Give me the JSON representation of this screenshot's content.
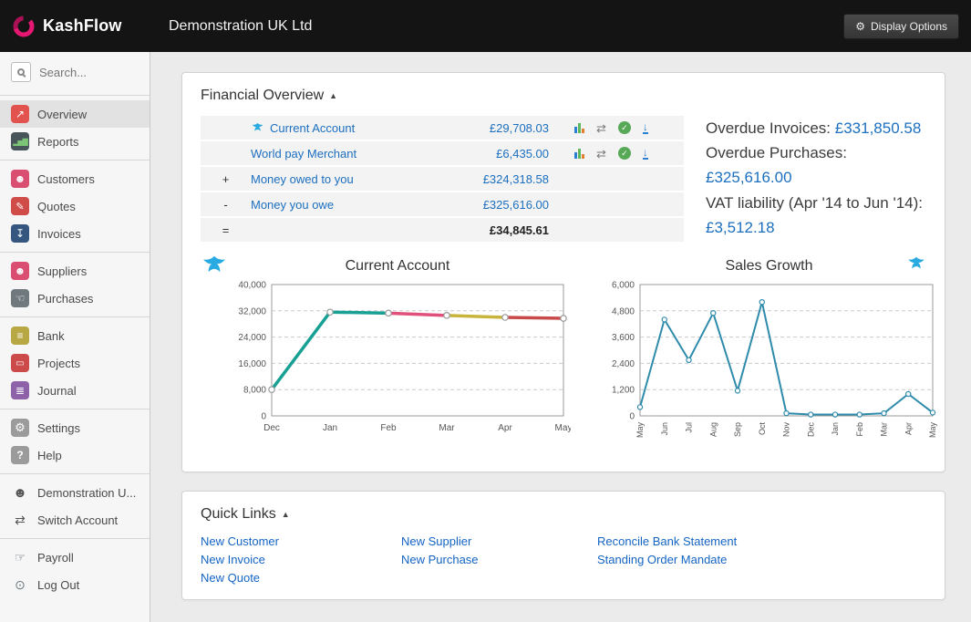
{
  "topbar": {
    "brand": "KashFlow",
    "company": "Demonstration UK Ltd",
    "display_options_label": "Display Options"
  },
  "sidebar": {
    "search_placeholder": "Search...",
    "items": [
      {
        "label": "Overview",
        "icon": "line-chart-icon",
        "active": true
      },
      {
        "label": "Reports",
        "icon": "bar-chart-icon"
      },
      {
        "label": "Customers",
        "icon": "people-icon"
      },
      {
        "label": "Quotes",
        "icon": "quote-doc-icon"
      },
      {
        "label": "Invoices",
        "icon": "invoice-tray-icon"
      },
      {
        "label": "Suppliers",
        "icon": "people-icon"
      },
      {
        "label": "Purchases",
        "icon": "hand-icon"
      },
      {
        "label": "Bank",
        "icon": "banknote-icon"
      },
      {
        "label": "Projects",
        "icon": "folder-icon"
      },
      {
        "label": "Journal",
        "icon": "journal-book-icon"
      },
      {
        "label": "Settings",
        "icon": "gear-icon"
      },
      {
        "label": "Help",
        "icon": "question-icon"
      },
      {
        "label": "Demonstration U...",
        "icon": "user-icon"
      },
      {
        "label": "Switch Account",
        "icon": "switch-arrows-icon"
      },
      {
        "label": "Payroll",
        "icon": "payroll-hand-icon"
      },
      {
        "label": "Log Out",
        "icon": "power-icon"
      }
    ]
  },
  "financial_overview": {
    "title": "Financial Overview",
    "collapse_icon": "▲",
    "rows": [
      {
        "prefix": "",
        "name": "Current Account",
        "amount": "£29,708.03",
        "has_bank_logo": true,
        "actions": [
          "mini-chart-icon",
          "transfer-icon",
          "reconcile-check-icon",
          "import-statement-icon"
        ]
      },
      {
        "prefix": "",
        "name": "World pay Merchant",
        "amount": "£6,435.00",
        "actions": [
          "mini-chart-icon",
          "transfer-icon",
          "reconcile-check-icon",
          "import-statement-icon"
        ]
      },
      {
        "prefix": "+",
        "name": "Money owed to you",
        "amount": "£324,318.58"
      },
      {
        "prefix": "-",
        "name": "Money you owe",
        "amount": "£325,616.00"
      },
      {
        "prefix": "=",
        "name": "",
        "amount": "£34,845.61"
      }
    ],
    "summary": {
      "overdue_invoices_label": "Overdue Invoices:",
      "overdue_invoices_value": "£331,850.58",
      "overdue_purchases_label": "Overdue Purchases:",
      "overdue_purchases_value": "£325,616.00",
      "vat_label": "VAT liability (Apr '14 to Jun '14):",
      "vat_value": "£3,512.18"
    }
  },
  "chart_data": [
    {
      "type": "line",
      "title": "Current Account",
      "x": [
        "Dec",
        "Jan",
        "Feb",
        "Mar",
        "Apr",
        "May"
      ],
      "values": [
        8000,
        31600,
        31300,
        30600,
        30000,
        29708
      ],
      "ylim": [
        0,
        40000
      ],
      "yticks": [
        0,
        8000,
        16000,
        24000,
        32000,
        40000
      ],
      "segment_colors": [
        "#17a093",
        "#17a093",
        "#e0507a",
        "#c8b43c",
        "#c94a4a"
      ],
      "marker_stroke": "#999999",
      "grid": true,
      "legend": "none"
    },
    {
      "type": "line",
      "title": "Sales Growth",
      "x": [
        "May",
        "Jun",
        "Jul",
        "Aug",
        "Sep",
        "Oct",
        "Nov",
        "Dec",
        "Jan",
        "Feb",
        "Mar",
        "Apr",
        "May"
      ],
      "values": [
        400,
        4400,
        2550,
        4700,
        1150,
        5200,
        120,
        60,
        60,
        60,
        120,
        1000,
        150
      ],
      "ylim": [
        0,
        6000
      ],
      "yticks": [
        0,
        1200,
        2400,
        3600,
        4800,
        6000
      ],
      "line_color": "#2e8bab",
      "marker_stroke": "#2e8bab",
      "grid": true,
      "legend": "none"
    }
  ],
  "quick_links": {
    "title": "Quick Links",
    "collapse_icon": "▲",
    "columns": [
      [
        "New Customer",
        "New Invoice",
        "New Quote"
      ],
      [
        "New Supplier",
        "New Purchase"
      ],
      [
        "Reconcile Bank Statement",
        "Standing Order Mandate"
      ]
    ]
  }
}
